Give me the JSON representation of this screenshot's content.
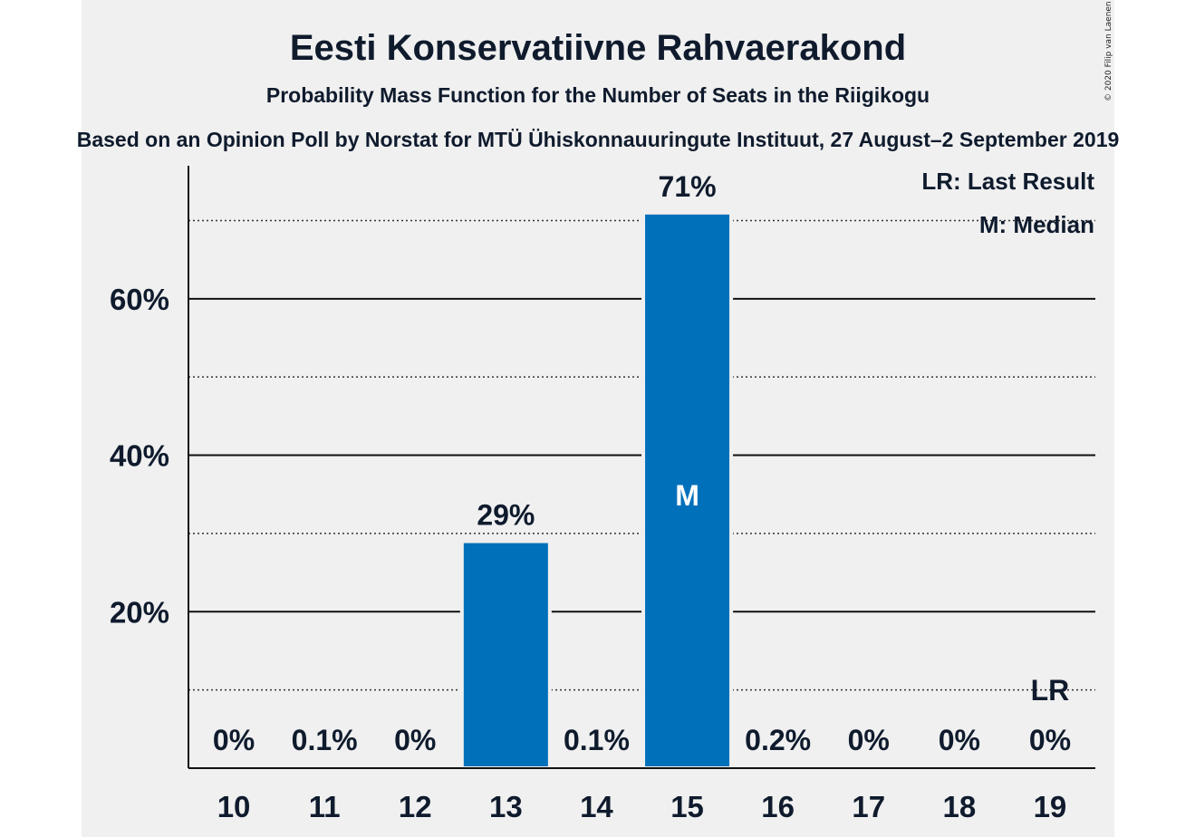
{
  "chart_data": {
    "type": "bar",
    "title": "Eesti Konservatiivne Rahvaerakond",
    "subtitle": "Probability Mass Function for the Number of Seats in the Riigikogu",
    "source": "Based on an Opinion Poll by Norstat for MTÜ Ühiskonnauuringute Instituut, 27 August–2 September 2019",
    "copyright": "© 2020 Filip van Laenen",
    "categories": [
      "10",
      "11",
      "12",
      "13",
      "14",
      "15",
      "16",
      "17",
      "18",
      "19"
    ],
    "values": [
      0,
      0.1,
      0,
      29,
      0.1,
      71,
      0.2,
      0,
      0,
      0
    ],
    "value_labels": [
      "0%",
      "0.1%",
      "0%",
      "29%",
      "0.1%",
      "71%",
      "0.2%",
      "0%",
      "0%",
      "0%"
    ],
    "ylim": [
      0,
      77
    ],
    "yticks": [
      20,
      40,
      60
    ],
    "ytick_labels": [
      "20%",
      "40%",
      "60%"
    ],
    "minor_gridlines": [
      10,
      30,
      50,
      70
    ],
    "median_seat": "15",
    "median_marker": "M",
    "last_result_seat": "19",
    "last_result_marker": "LR",
    "legend": [
      "LR: Last Result",
      "M: Median"
    ],
    "legend_position": "top-right",
    "bar_color": "#0070bb",
    "plot_background": "#f0f0f0",
    "text_color": "#0f1b2d"
  }
}
